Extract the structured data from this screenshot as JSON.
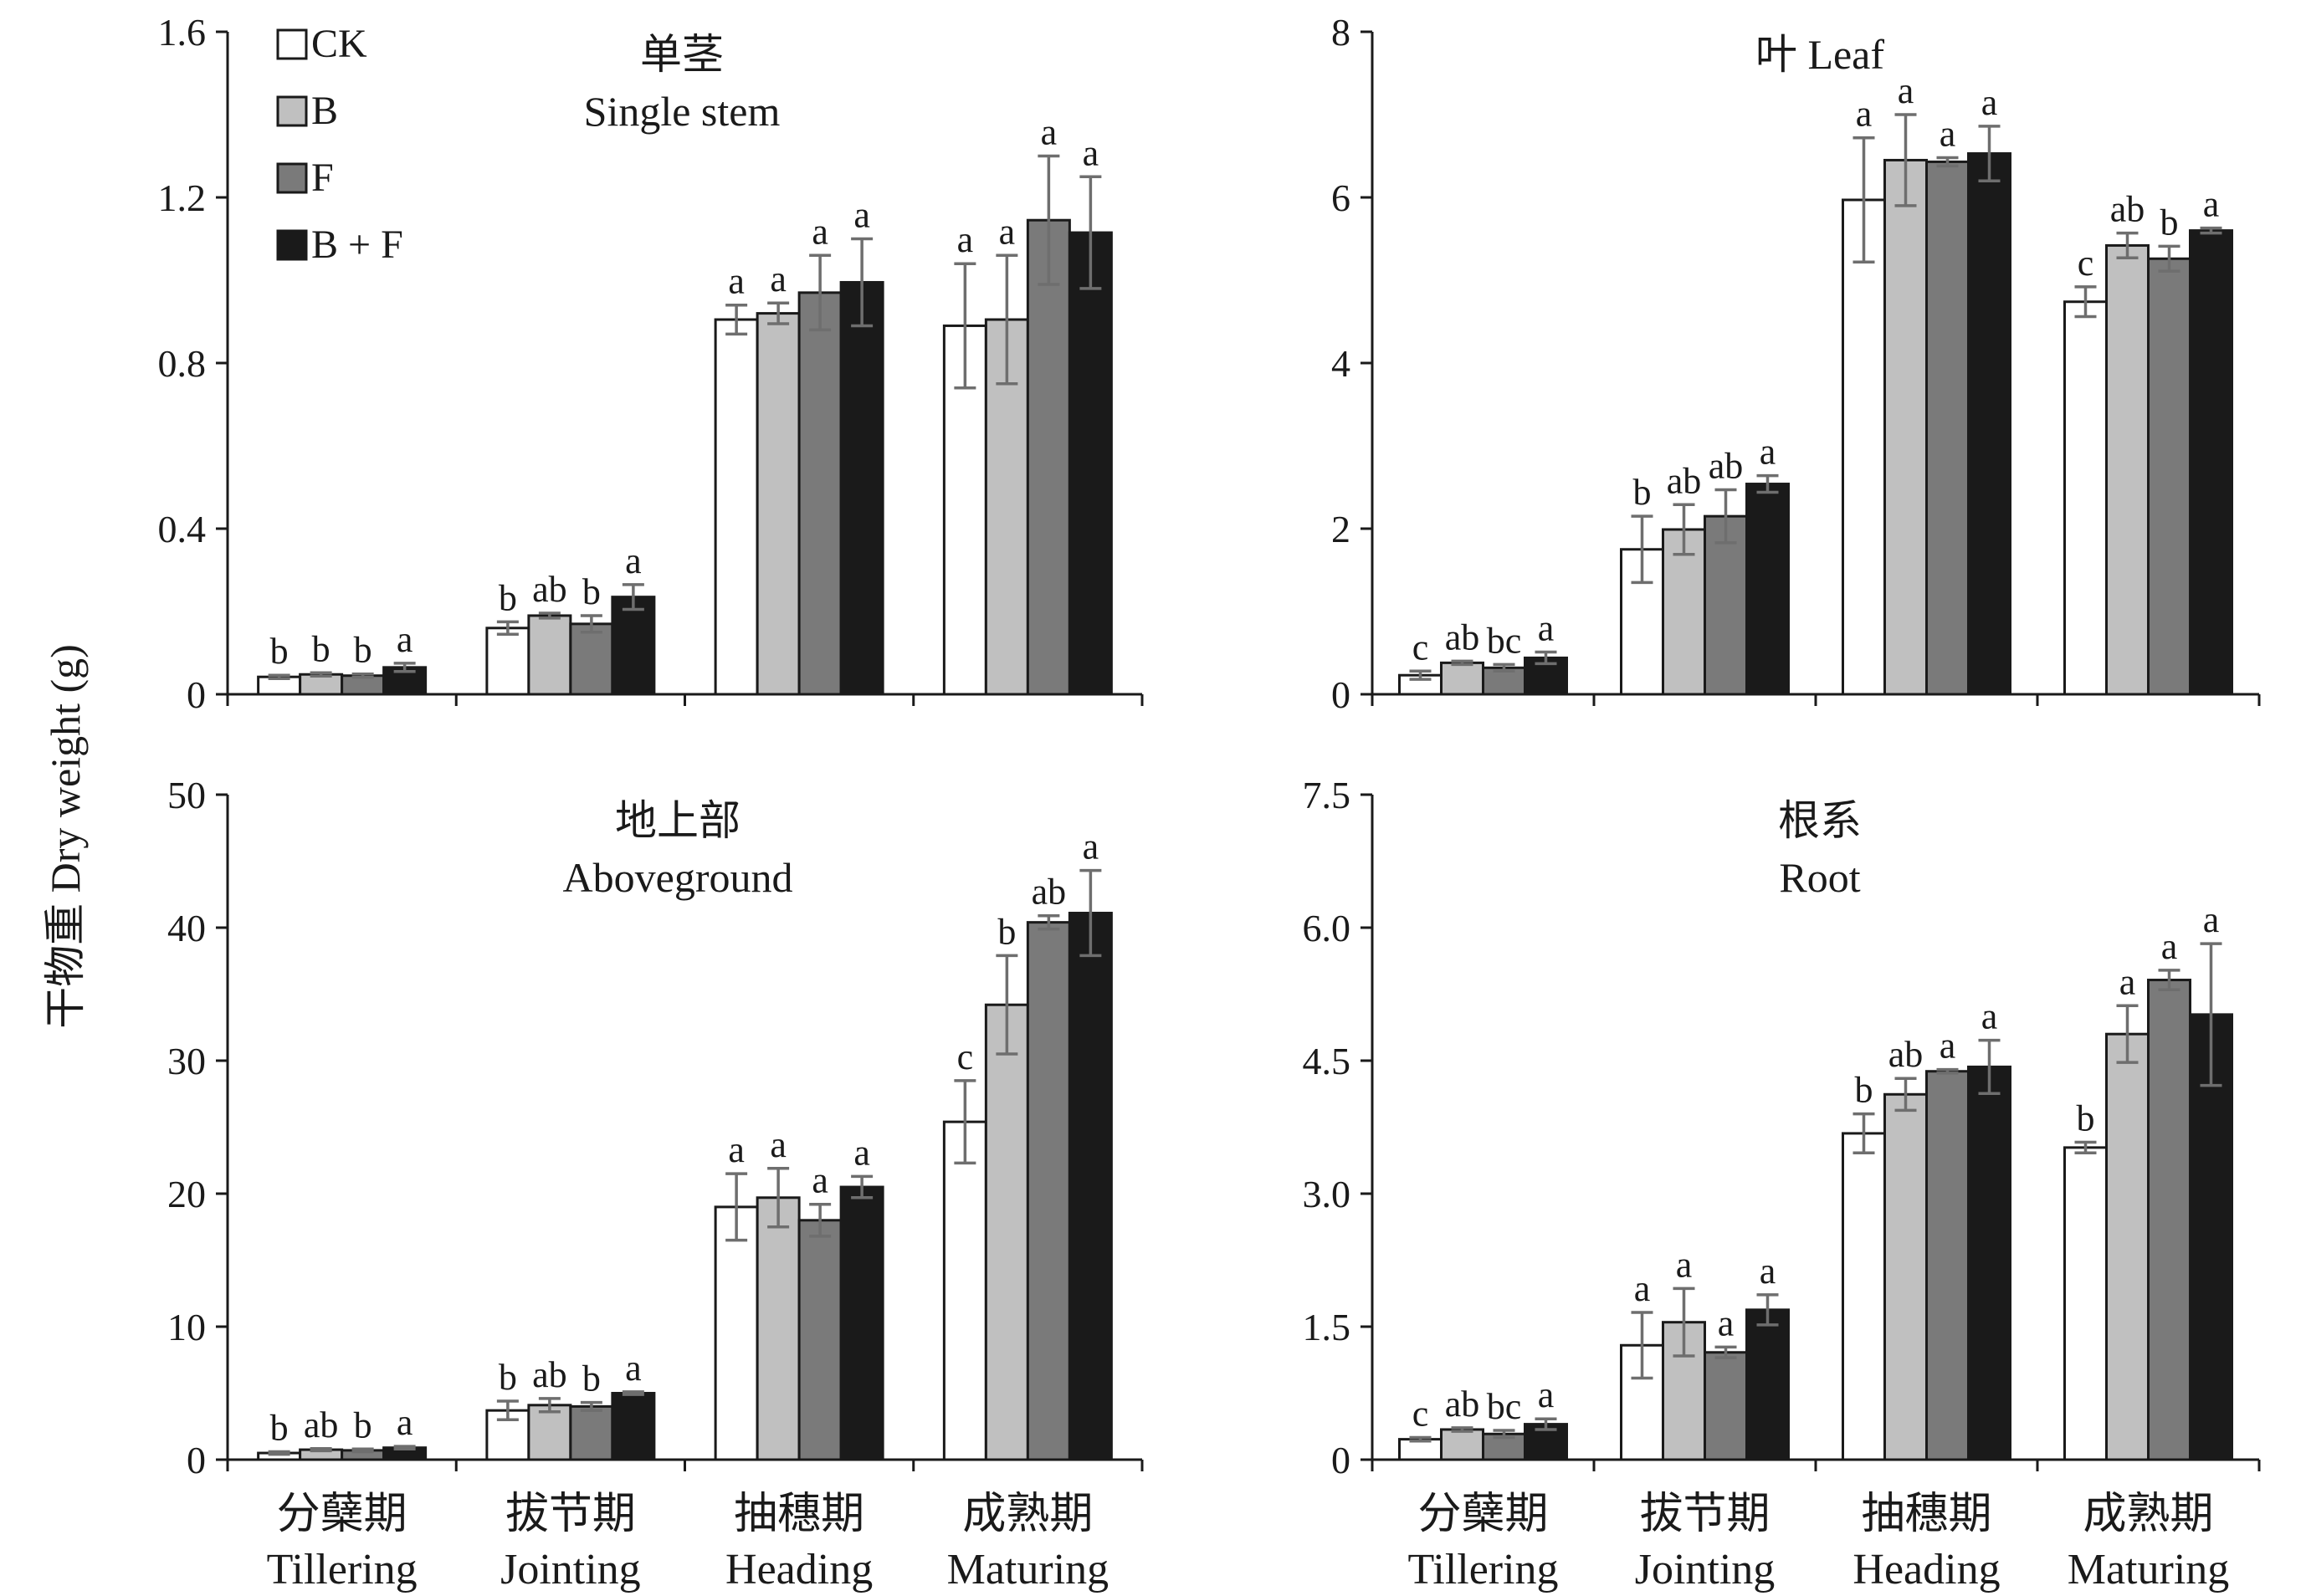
{
  "y_axis_label": "干物重 Dry weight (g)",
  "legend": [
    {
      "name": "CK",
      "color": "#ffffff"
    },
    {
      "name": "B",
      "color": "#c0c0c0"
    },
    {
      "name": "F",
      "color": "#7a7a7a"
    },
    {
      "name": "B + F",
      "color": "#1a1a1a"
    }
  ],
  "categories": [
    {
      "cn": "分蘖期",
      "en": "Tillering"
    },
    {
      "cn": "拔节期",
      "en": "Jointing"
    },
    {
      "cn": "抽穗期",
      "en": "Heading"
    },
    {
      "cn": "成熟期",
      "en": "Maturing"
    }
  ],
  "chart_data": [
    {
      "type": "bar",
      "title_cn": "单茎",
      "title_en": "Single stem",
      "ylim": [
        0,
        1.6
      ],
      "yticks": [
        "0",
        "0.4",
        "0.8",
        "1.2",
        "1.6"
      ],
      "series": [
        {
          "name": "CK",
          "values": [
            0.042,
            0.16,
            0.905,
            0.89
          ],
          "errors": [
            0.004,
            0.015,
            0.035,
            0.15
          ],
          "labels": [
            "b",
            "b",
            "a",
            "a"
          ]
        },
        {
          "name": "B",
          "values": [
            0.048,
            0.19,
            0.92,
            0.905
          ],
          "errors": [
            0.004,
            0.006,
            0.025,
            0.155
          ],
          "labels": [
            "b",
            "ab",
            "a",
            "a"
          ]
        },
        {
          "name": "F",
          "values": [
            0.045,
            0.17,
            0.97,
            1.145
          ],
          "errors": [
            0.004,
            0.02,
            0.09,
            0.155
          ],
          "labels": [
            "b",
            "b",
            "a",
            "a"
          ]
        },
        {
          "name": "B + F",
          "values": [
            0.065,
            0.235,
            0.995,
            1.115
          ],
          "errors": [
            0.01,
            0.03,
            0.105,
            0.135
          ],
          "labels": [
            "a",
            "a",
            "a",
            "a"
          ]
        }
      ]
    },
    {
      "type": "bar",
      "title_cn": "叶",
      "title_en": "Leaf",
      "ylim": [
        0,
        8
      ],
      "yticks": [
        "0",
        "2",
        "4",
        "6",
        "8"
      ],
      "series": [
        {
          "name": "CK",
          "values": [
            0.23,
            1.75,
            5.97,
            4.74
          ],
          "errors": [
            0.05,
            0.4,
            0.75,
            0.18
          ],
          "labels": [
            "c",
            "b",
            "a",
            "c"
          ]
        },
        {
          "name": "B",
          "values": [
            0.38,
            1.99,
            6.45,
            5.42
          ],
          "errors": [
            0.02,
            0.3,
            0.55,
            0.15
          ],
          "labels": [
            "ab",
            "ab",
            "a",
            "ab"
          ]
        },
        {
          "name": "F",
          "values": [
            0.32,
            2.15,
            6.43,
            5.26
          ],
          "errors": [
            0.04,
            0.32,
            0.05,
            0.15
          ],
          "labels": [
            "bc",
            "ab",
            "a",
            "b"
          ]
        },
        {
          "name": "B + F",
          "values": [
            0.44,
            2.54,
            6.53,
            5.6
          ],
          "errors": [
            0.07,
            0.1,
            0.33,
            0.03
          ],
          "labels": [
            "a",
            "a",
            "a",
            "a"
          ]
        }
      ]
    },
    {
      "type": "bar",
      "title_cn": "地上部",
      "title_en": "Aboveground",
      "ylim": [
        0,
        50
      ],
      "yticks": [
        "0",
        "10",
        "20",
        "30",
        "40",
        "50"
      ],
      "series": [
        {
          "name": "CK",
          "values": [
            0.5,
            3.7,
            19.0,
            25.4
          ],
          "errors": [
            0.1,
            0.7,
            2.5,
            3.1
          ],
          "labels": [
            "b",
            "b",
            "a",
            "c"
          ]
        },
        {
          "name": "B",
          "values": [
            0.75,
            4.1,
            19.7,
            34.2
          ],
          "errors": [
            0.08,
            0.5,
            2.2,
            3.7
          ],
          "labels": [
            "ab",
            "ab",
            "a",
            "b"
          ]
        },
        {
          "name": "F",
          "values": [
            0.7,
            4.0,
            18.0,
            40.4
          ],
          "errors": [
            0.1,
            0.3,
            1.2,
            0.5
          ],
          "labels": [
            "b",
            "b",
            "a",
            "ab"
          ]
        },
        {
          "name": "B + F",
          "values": [
            0.9,
            5.0,
            20.5,
            41.1
          ],
          "errors": [
            0.1,
            0.1,
            0.8,
            3.2
          ],
          "labels": [
            "a",
            "a",
            "a",
            "a"
          ]
        }
      ]
    },
    {
      "type": "bar",
      "title_cn": "根系",
      "title_en": "Root",
      "ylim": [
        0,
        7.5
      ],
      "yticks": [
        "0",
        "1.5",
        "3.0",
        "4.5",
        "6.0",
        "7.5"
      ],
      "series": [
        {
          "name": "CK",
          "values": [
            0.23,
            1.29,
            3.68,
            3.52
          ],
          "errors": [
            0.02,
            0.37,
            0.22,
            0.06
          ],
          "labels": [
            "c",
            "a",
            "b",
            "b"
          ]
        },
        {
          "name": "B",
          "values": [
            0.34,
            1.55,
            4.12,
            4.8
          ],
          "errors": [
            0.02,
            0.38,
            0.18,
            0.32
          ],
          "labels": [
            "ab",
            "a",
            "ab",
            "a"
          ]
        },
        {
          "name": "F",
          "values": [
            0.29,
            1.21,
            4.38,
            5.41
          ],
          "errors": [
            0.04,
            0.06,
            0.02,
            0.11
          ],
          "labels": [
            "bc",
            "a",
            "a",
            "a"
          ]
        },
        {
          "name": "B + F",
          "values": [
            0.4,
            1.69,
            4.43,
            5.02
          ],
          "errors": [
            0.06,
            0.17,
            0.3,
            0.8
          ],
          "labels": [
            "a",
            "a",
            "a",
            "a"
          ]
        }
      ]
    }
  ]
}
